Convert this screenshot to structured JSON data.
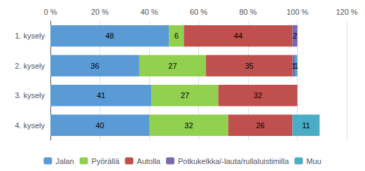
{
  "chart_data": {
    "type": "bar",
    "orientation": "horizontal",
    "stacked": true,
    "data_labels": true,
    "grid": true,
    "legend": "bottom",
    "categories": [
      "1. kysely",
      "2. kysely",
      "3. kysely",
      "4. kysely"
    ],
    "series": [
      {
        "name": "Jalan",
        "color": "#5B9BD5",
        "values": [
          48,
          36,
          41,
          40
        ]
      },
      {
        "name": "Pyörällä",
        "color": "#92D050",
        "values": [
          6,
          27,
          27,
          32
        ]
      },
      {
        "name": "Autolla",
        "color": "#C0504D",
        "values": [
          44,
          35,
          32,
          26
        ]
      },
      {
        "name": "Potkukelkka/-lauta/rullaluistimilla",
        "color": "#7B69AE",
        "values": [
          2,
          1,
          0,
          0
        ]
      },
      {
        "name": "Muu",
        "color": "#4BACC6",
        "values": [
          0,
          1,
          0,
          11
        ]
      }
    ],
    "xlim": [
      0,
      120
    ],
    "xticks": [
      {
        "value": 0,
        "label": "0 %"
      },
      {
        "value": 20,
        "label": "20 %"
      },
      {
        "value": 40,
        "label": "40 %"
      },
      {
        "value": 60,
        "label": "60 %"
      },
      {
        "value": 80,
        "label": "80 %"
      },
      {
        "value": 100,
        "label": "100 %"
      },
      {
        "value": 120,
        "label": "120 %"
      }
    ]
  }
}
